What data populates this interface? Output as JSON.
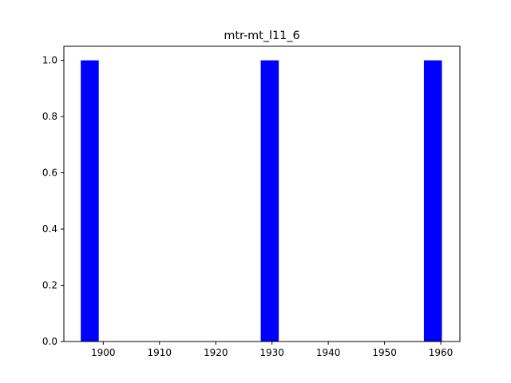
{
  "chart_data": {
    "type": "bar",
    "title": "mtr-mt_l11_6",
    "xlabel": "",
    "ylabel": "",
    "bars": [
      {
        "x_start": 1896.0,
        "x_end": 1899.2,
        "value": 1
      },
      {
        "x_start": 1928.0,
        "x_end": 1931.2,
        "value": 1
      },
      {
        "x_start": 1957.0,
        "x_end": 1960.2,
        "value": 1
      }
    ],
    "xlim": [
      1893.0,
      1963.4
    ],
    "ylim": [
      0,
      1.05
    ],
    "x_ticks": [
      1900,
      1910,
      1920,
      1930,
      1940,
      1950,
      1960
    ],
    "y_ticks": [
      0.0,
      0.2,
      0.4,
      0.6,
      0.8,
      1.0
    ],
    "x_tick_labels": [
      "1900",
      "1910",
      "1920",
      "1930",
      "1940",
      "1950",
      "1960"
    ],
    "y_tick_labels": [
      "0.0",
      "0.2",
      "0.4",
      "0.6",
      "0.8",
      "1.0"
    ],
    "bar_color": "#0000ff",
    "grid": false,
    "legend": "none"
  }
}
